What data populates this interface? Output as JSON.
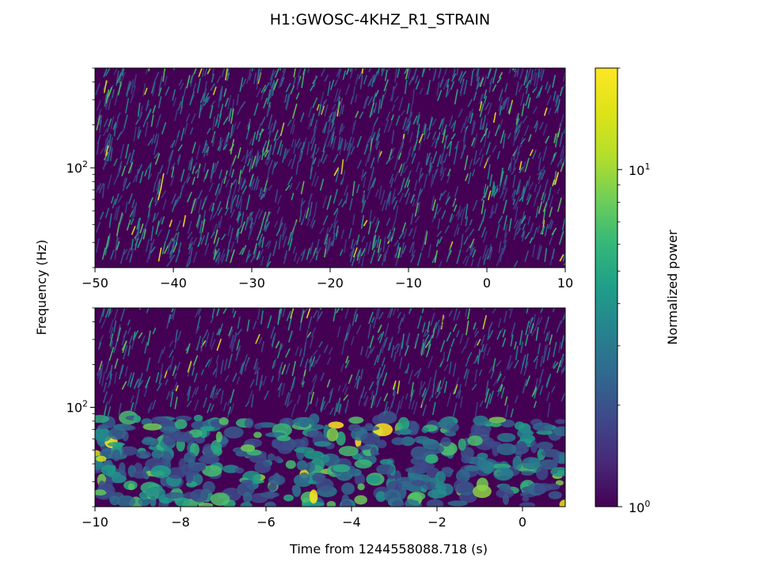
{
  "chart_data": {
    "type": "heatmap",
    "title": "H1:GWOSC-4KHZ_R1_STRAIN",
    "ylabel": "Frequency (Hz)",
    "xlabel": "Time from 1244558088.718 (s)",
    "colormap": "viridis",
    "yscale": "log",
    "panels": [
      {
        "xlim": [
          -50,
          10
        ],
        "ylim": [
          20,
          500
        ],
        "xticks": [
          -50,
          -40,
          -30,
          -20,
          -10,
          0,
          10
        ],
        "xtick_labels": [
          "−50",
          "−40",
          "−30",
          "−20",
          "−10",
          "0",
          "10"
        ],
        "ytick_base": "10",
        "ytick_exp": "2",
        "xlabel": ""
      },
      {
        "xlim": [
          -10,
          1
        ],
        "ylim": [
          20,
          500
        ],
        "xticks": [
          -10,
          -8,
          -6,
          -4,
          -2,
          0
        ],
        "xtick_labels": [
          "−10",
          "−8",
          "−6",
          "−4",
          "−2",
          "0"
        ],
        "ytick_base": "10",
        "ytick_exp": "2",
        "xlabel": "Time from 1244558088.718 (s)"
      }
    ],
    "colorbar": {
      "label": "Normalized power",
      "scale": "log",
      "range": [
        1,
        20
      ],
      "ticks": [
        {
          "value": 1,
          "base": "10",
          "exp": "0"
        },
        {
          "value": 10,
          "base": "10",
          "exp": "1"
        }
      ]
    }
  }
}
